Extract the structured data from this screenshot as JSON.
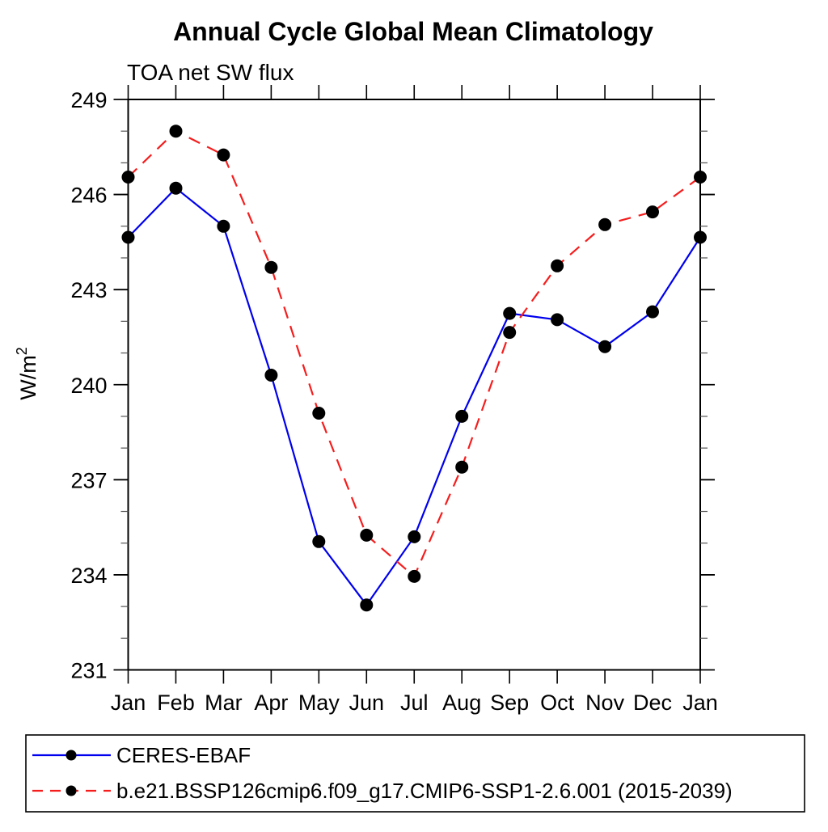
{
  "page": {
    "background_color": "#ffffff",
    "text_color": "#000000"
  },
  "chart_data": {
    "type": "line",
    "title": "Annual Cycle Global Mean Climatology",
    "subtitle": "TOA net SW flux",
    "ylabel_base": "W/m",
    "ylabel_sup": "2",
    "xlabel": "",
    "categories": [
      "Jan",
      "Feb",
      "Mar",
      "Apr",
      "May",
      "Jun",
      "Jul",
      "Aug",
      "Sep",
      "Oct",
      "Nov",
      "Dec",
      "Jan"
    ],
    "ylim": [
      231,
      249
    ],
    "ytick_major": [
      231,
      234,
      237,
      240,
      243,
      246,
      249
    ],
    "ytick_minor_step": 1,
    "grid": false,
    "legend_position": "bottom-left-box",
    "series": [
      {
        "name": "CERES-EBAF",
        "color": "#0000ee",
        "line_style": "solid",
        "marker": "filled-circle",
        "marker_color": "#000000",
        "values": [
          244.65,
          246.2,
          245.0,
          240.3,
          235.05,
          233.05,
          235.2,
          239.0,
          242.25,
          242.05,
          241.2,
          242.3,
          244.65
        ]
      },
      {
        "name": "b.e21.BSSP126cmip6.f09_g17.CMIP6-SSP1-2.6.001 (2015-2039)",
        "color": "#f61d1d",
        "line_style": "dashed",
        "marker": "filled-circle",
        "marker_color": "#000000",
        "values": [
          246.55,
          248.0,
          247.25,
          243.7,
          239.1,
          235.25,
          233.95,
          237.4,
          241.65,
          243.75,
          245.05,
          245.45,
          246.55
        ]
      }
    ]
  }
}
